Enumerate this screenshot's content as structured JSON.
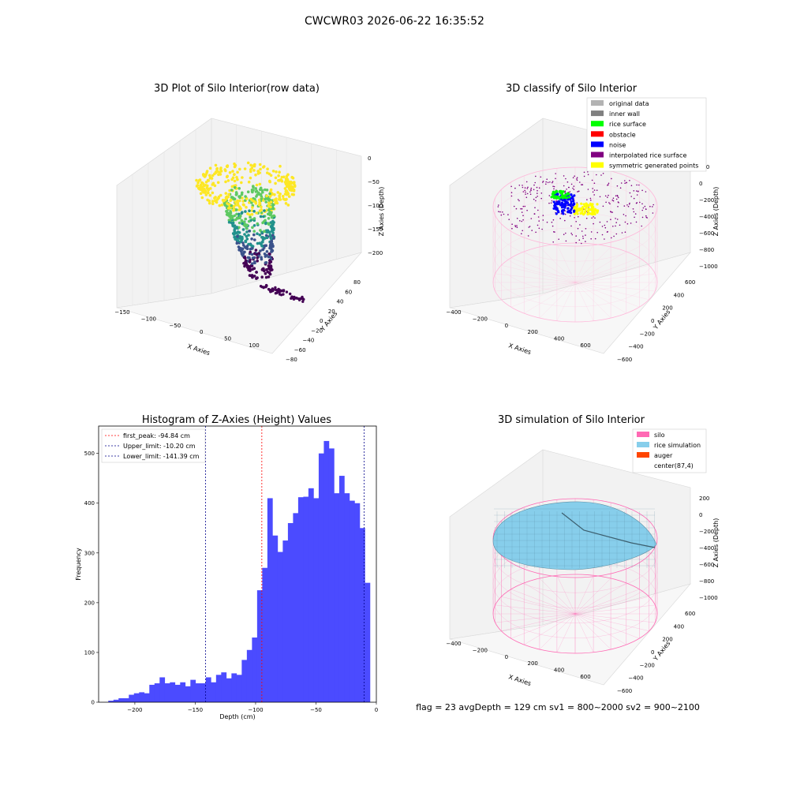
{
  "figure_title": "CWCWR03 2026-06-22 16:35:52",
  "footer_text": "flag = 23  avgDepth = 129 cm  sv1 = 800~2000  sv2 = 900~2100",
  "chart_data": [
    {
      "type": "scatter",
      "title": "3D Plot of Silo Interior(row data)",
      "xlabel": "X Axies",
      "ylabel": "Y Axies",
      "zlabel": "Z Axies (Depth)",
      "x_ticks": [
        "−150",
        "−100",
        "−50",
        "0",
        "50",
        "100"
      ],
      "y_ticks": [
        "−80",
        "−60",
        "−40",
        "−20",
        "0",
        "20",
        "40",
        "60",
        "80"
      ],
      "z_ticks": [
        "0",
        "−50",
        "−100",
        "−150",
        "−200"
      ],
      "colormap": "viridis"
    },
    {
      "type": "scatter",
      "title": "3D classify of Silo Interior",
      "xlabel": "X Axies",
      "ylabel": "Y Axies",
      "zlabel": "Z Axies (Depth)",
      "x_ticks": [
        "−400",
        "−200",
        "0",
        "200",
        "400",
        "600"
      ],
      "y_ticks": [
        "−600",
        "−400",
        "−200",
        "0",
        "200",
        "400",
        "600"
      ],
      "z_ticks": [
        "200",
        "0",
        "−200",
        "−400",
        "−600",
        "−800",
        "−1000"
      ],
      "legend": [
        {
          "label": "original data",
          "color": "#b3b3b3"
        },
        {
          "label": "inner wall",
          "color": "#808080"
        },
        {
          "label": "rice surface",
          "color": "#00ff00"
        },
        {
          "label": "obstacle",
          "color": "#ff0000"
        },
        {
          "label": "noise",
          "color": "#0000ff"
        },
        {
          "label": "interpolated rice surface",
          "color": "#800080"
        },
        {
          "label": "symmetric generated points",
          "color": "#ffff00"
        }
      ],
      "legend_position": "top-right"
    },
    {
      "type": "bar",
      "title": "Histogram of Z-Axies (Height) Values",
      "xlabel": "Depth (cm)",
      "ylabel": "Frequency",
      "xlim": [
        -230,
        0
      ],
      "ylim": [
        0,
        555
      ],
      "x_ticks": [
        -200,
        -150,
        -100,
        -50,
        0
      ],
      "y_ticks": [
        0,
        100,
        200,
        300,
        400,
        500
      ],
      "bin_width": 4.25,
      "bin_start": -222,
      "values": [
        3,
        5,
        8,
        8,
        15,
        18,
        20,
        18,
        35,
        38,
        50,
        38,
        40,
        35,
        40,
        32,
        45,
        38,
        38,
        50,
        40,
        55,
        60,
        48,
        58,
        55,
        85,
        105,
        130,
        225,
        270,
        410,
        335,
        302,
        325,
        360,
        380,
        412,
        413,
        430,
        410,
        500,
        525,
        510,
        420,
        455,
        420,
        405,
        400,
        350,
        240
      ],
      "bar_color": "#4b4bff",
      "vlines": [
        {
          "label": "first_peak: -94.84 cm",
          "x": -94.84,
          "color": "#ff0000"
        },
        {
          "label": "Upper_limit: -10.20 cm",
          "x": -10.2,
          "color": "#00008b"
        },
        {
          "label": "Lower_limit: -141.39 cm",
          "x": -141.39,
          "color": "#00008b"
        }
      ],
      "legend_position": "top-left"
    },
    {
      "type": "surface",
      "title": "3D simulation of Silo Interior",
      "xlabel": "X Axies",
      "ylabel": "Y Axies",
      "zlabel": "Z Axies (Depth)",
      "x_ticks": [
        "−400",
        "−200",
        "0",
        "200",
        "400",
        "600"
      ],
      "y_ticks": [
        "−600",
        "−400",
        "−200",
        "0",
        "200",
        "400",
        "600"
      ],
      "z_ticks": [
        "200",
        "0",
        "−200",
        "−400",
        "−600",
        "−800",
        "−1000"
      ],
      "legend": [
        {
          "label": "silo",
          "color": "#ff69b4"
        },
        {
          "label": "rice simulation",
          "color": "#87ceeb"
        },
        {
          "label": "auger",
          "color": "#ff4500"
        },
        {
          "label": "center(87,4)",
          "color": ""
        }
      ],
      "legend_position": "top-right"
    }
  ]
}
